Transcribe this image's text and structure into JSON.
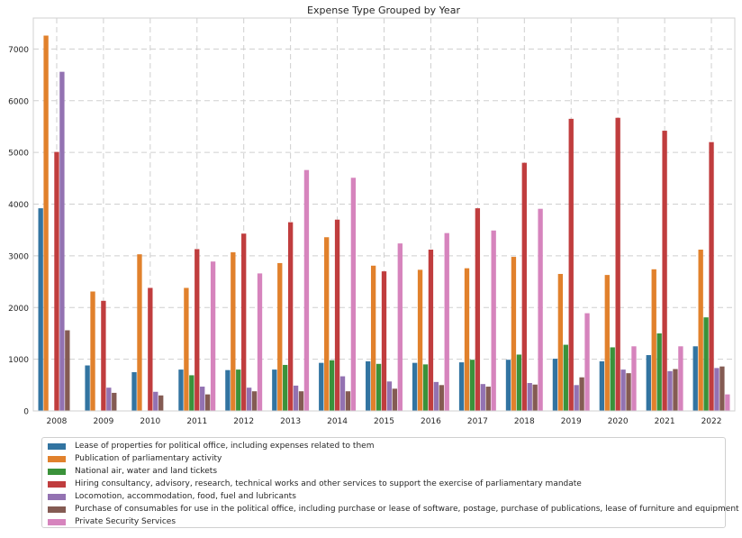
{
  "chart_data": {
    "type": "bar",
    "title": "Expense Type Grouped by Year",
    "xlabel": "",
    "ylabel": "",
    "ylim": [
      0,
      7600
    ],
    "yticks": [
      0,
      1000,
      2000,
      3000,
      4000,
      5000,
      6000,
      7000
    ],
    "grid": true,
    "legend_position": "bottom",
    "categories": [
      "2008",
      "2009",
      "2010",
      "2011",
      "2012",
      "2013",
      "2014",
      "2015",
      "2016",
      "2017",
      "2018",
      "2019",
      "2020",
      "2021",
      "2022"
    ],
    "series": [
      {
        "name": "Lease of properties for political office, including expenses related to them",
        "color": "#3274a1",
        "values": [
          3920,
          880,
          750,
          800,
          790,
          800,
          930,
          960,
          930,
          940,
          990,
          1010,
          960,
          1080,
          1250
        ]
      },
      {
        "name": "Publication of parliamentary activity",
        "color": "#e1812c",
        "values": [
          7260,
          2310,
          3030,
          2380,
          3070,
          2860,
          3360,
          2810,
          2730,
          2760,
          2980,
          2650,
          2630,
          2740,
          3120
        ]
      },
      {
        "name": "National air, water and land tickets",
        "color": "#3a923a",
        "values": [
          null,
          null,
          null,
          690,
          800,
          890,
          980,
          910,
          900,
          990,
          1090,
          1280,
          1230,
          1500,
          1810
        ]
      },
      {
        "name": "Hiring consultancy, advisory, research, technical works and other services to support the exercise of parliamentary mandate",
        "color": "#c03d3e",
        "values": [
          5010,
          2130,
          2380,
          3130,
          3430,
          3650,
          3700,
          2700,
          3120,
          3920,
          4800,
          5650,
          5670,
          5420,
          5200
        ]
      },
      {
        "name": "Locomotion, accommodation, food, fuel and lubricants",
        "color": "#9372b2",
        "values": [
          6560,
          450,
          370,
          470,
          450,
          490,
          670,
          570,
          560,
          520,
          540,
          500,
          800,
          770,
          830
        ]
      },
      {
        "name": "Purchase of consumables for use in the political office, including purchase or lease of software, postage, purchase of publications, lease of furniture and equipment",
        "color": "#845b53",
        "values": [
          1560,
          350,
          300,
          320,
          380,
          380,
          380,
          430,
          500,
          470,
          510,
          650,
          730,
          810,
          860
        ]
      },
      {
        "name": "Private Security Services",
        "color": "#d684bd",
        "values": [
          null,
          null,
          null,
          2890,
          2660,
          4660,
          4510,
          3240,
          3440,
          3490,
          3910,
          1890,
          1250,
          1250,
          320
        ]
      }
    ]
  }
}
